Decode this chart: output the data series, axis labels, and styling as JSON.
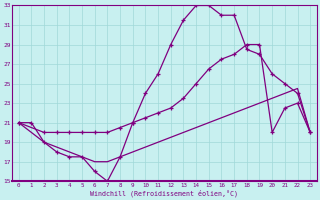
{
  "xlabel": "Windchill (Refroidissement éolien,°C)",
  "bg_color": "#c8f0f0",
  "line_color": "#800080",
  "xlim": [
    -0.5,
    23.5
  ],
  "ylim": [
    15,
    33
  ],
  "yticks": [
    15,
    17,
    19,
    21,
    23,
    25,
    27,
    29,
    31,
    33
  ],
  "xticks": [
    0,
    1,
    2,
    3,
    4,
    5,
    6,
    7,
    8,
    9,
    10,
    11,
    12,
    13,
    14,
    15,
    16,
    17,
    18,
    19,
    20,
    21,
    22,
    23
  ],
  "curve1_x": [
    0,
    1,
    2,
    3,
    4,
    5,
    6,
    7,
    8,
    9,
    10,
    11,
    12,
    13,
    14,
    15,
    16,
    17,
    18,
    19,
    20,
    21,
    22,
    23
  ],
  "curve1_y": [
    21,
    21,
    19,
    18,
    17.5,
    17.5,
    16,
    15,
    17.5,
    21,
    24,
    26,
    29,
    31.5,
    33,
    33,
    32,
    32,
    28.5,
    28,
    26,
    25,
    24,
    20
  ],
  "curve2_x": [
    0,
    2,
    3,
    4,
    5,
    6,
    7,
    8,
    9,
    10,
    11,
    12,
    13,
    14,
    15,
    16,
    17,
    18,
    19,
    20,
    21,
    22,
    23
  ],
  "curve2_y": [
    21,
    20,
    20,
    20,
    20,
    20,
    20,
    20.5,
    21,
    21.5,
    22,
    22.5,
    23.5,
    25,
    26.5,
    27.5,
    28,
    29,
    29,
    20,
    22.5,
    23,
    20
  ],
  "curve3_x": [
    0,
    2,
    3,
    4,
    5,
    6,
    7,
    8,
    9,
    10,
    11,
    12,
    13,
    14,
    15,
    16,
    17,
    18,
    19,
    20,
    21,
    22,
    23
  ],
  "curve3_y": [
    21,
    19,
    18.5,
    18,
    17.5,
    17,
    17,
    17.5,
    18,
    18.5,
    19,
    19.5,
    20,
    20.5,
    21,
    21.5,
    22,
    22.5,
    23,
    23.5,
    24,
    24.5,
    20
  ]
}
